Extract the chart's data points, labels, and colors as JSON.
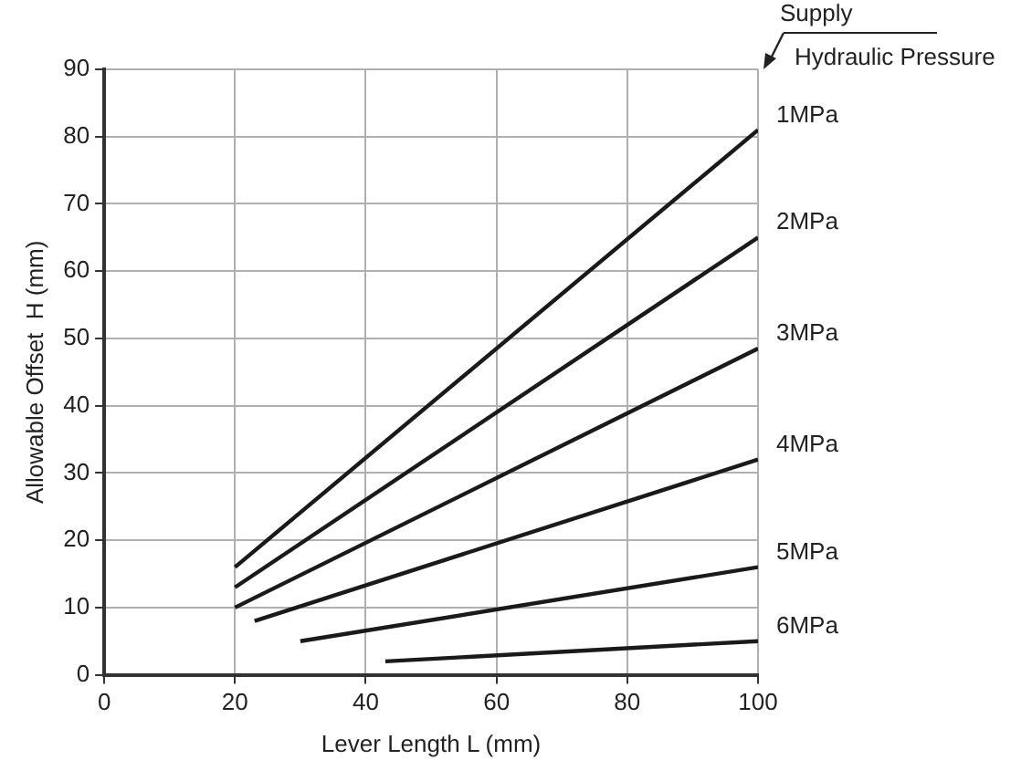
{
  "chart_data": {
    "type": "line",
    "xlabel": "Lever Length L (mm)",
    "ylabel": "Allowable Offset  H (mm)",
    "legend_title": "Supply\nHydraulic Pressure",
    "xlim": [
      0,
      100
    ],
    "xticks": [
      0,
      20,
      40,
      60,
      80,
      100
    ],
    "ylim": [
      0,
      90
    ],
    "yticks": [
      0,
      10,
      20,
      30,
      40,
      50,
      60,
      70,
      80,
      90
    ],
    "grid": true,
    "legend": false,
    "marker": "none",
    "line_style": "solid",
    "series": [
      {
        "name": "1MPa",
        "color": "#1a1a1a",
        "x": [
          20,
          100
        ],
        "values": [
          16,
          81
        ]
      },
      {
        "name": "2MPa",
        "color": "#1a1a1a",
        "x": [
          20,
          100
        ],
        "values": [
          13,
          65
        ]
      },
      {
        "name": "3MPa",
        "color": "#1a1a1a",
        "x": [
          20,
          100
        ],
        "values": [
          10,
          48.5
        ]
      },
      {
        "name": "4MPa",
        "color": "#1a1a1a",
        "x": [
          23,
          100
        ],
        "values": [
          8,
          32
        ]
      },
      {
        "name": "5MPa",
        "color": "#1a1a1a",
        "x": [
          30,
          100
        ],
        "values": [
          5,
          16
        ]
      },
      {
        "name": "6MPa",
        "color": "#1a1a1a",
        "x": [
          43,
          100
        ],
        "values": [
          2,
          5
        ]
      }
    ]
  }
}
